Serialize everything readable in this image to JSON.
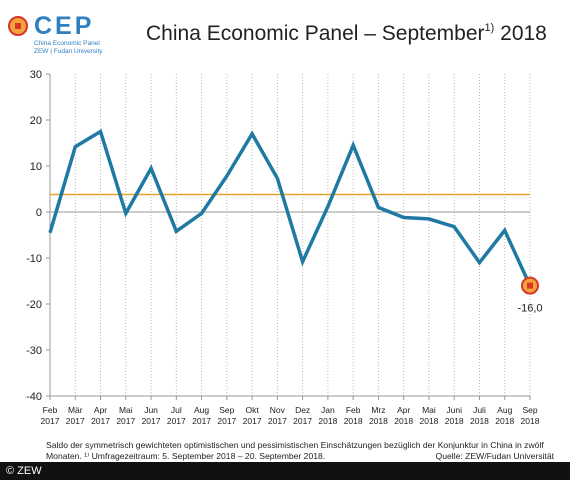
{
  "logo": {
    "text": "CEP",
    "sub1": "China Economic Panel",
    "sub2": "ZEW | Fudan University"
  },
  "title": "China Economic Panel – September",
  "title_sup": "1)",
  "title_year": " 2018",
  "chart_data": {
    "type": "line",
    "categories": [
      [
        "Feb",
        "2017"
      ],
      [
        "Mär",
        "2017"
      ],
      [
        "Apr",
        "2017"
      ],
      [
        "Mai",
        "2017"
      ],
      [
        "Jun",
        "2017"
      ],
      [
        "Jul",
        "2017"
      ],
      [
        "Aug",
        "2017"
      ],
      [
        "Sep",
        "2017"
      ],
      [
        "Okt",
        "2017"
      ],
      [
        "Nov",
        "2017"
      ],
      [
        "Dez",
        "2017"
      ],
      [
        "Jan",
        "2018"
      ],
      [
        "Feb",
        "2018"
      ],
      [
        "Mrz",
        "2018"
      ],
      [
        "Apr",
        "2018"
      ],
      [
        "Mai",
        "2018"
      ],
      [
        "Juni",
        "2018"
      ],
      [
        "Juli",
        "2018"
      ],
      [
        "Aug",
        "2018"
      ],
      [
        "Sep",
        "2018"
      ]
    ],
    "series": [
      {
        "values": [
          -4.5,
          14.2,
          17.5,
          -0.3,
          9.5,
          -4.2,
          -0.3,
          7.8,
          17.0,
          7.3,
          -10.8,
          1.2,
          14.5,
          1.0,
          -1.2,
          -1.5,
          -3.2,
          -11.0,
          -4.0,
          -16.0
        ],
        "color": "#1f7aa3"
      },
      {
        "values": [
          3.8,
          3.8,
          3.8,
          3.8,
          3.8,
          3.8,
          3.8,
          3.8,
          3.8,
          3.8,
          3.8,
          3.8,
          3.8,
          3.8,
          3.8,
          3.8,
          3.8,
          3.8,
          3.8,
          3.8
        ],
        "color": "#e6a229"
      }
    ],
    "yticks": [
      30,
      20,
      10,
      0,
      -10,
      -20,
      -30,
      -40
    ],
    "ylim": [
      -40,
      30
    ],
    "grid": true,
    "annotation": "-16,0"
  },
  "footnote": "Saldo der symmetrisch gewichteten optimistischen und pessimistischen Einschätzungen bezüglich der Konjunktur in China in zwölf Monaten. ¹⁾ Umfragezeitraum: 5. September 2018 – 20. September 2018.",
  "source": "Quelle: ZEW/Fudan Universität",
  "copyright": "© ZEW"
}
